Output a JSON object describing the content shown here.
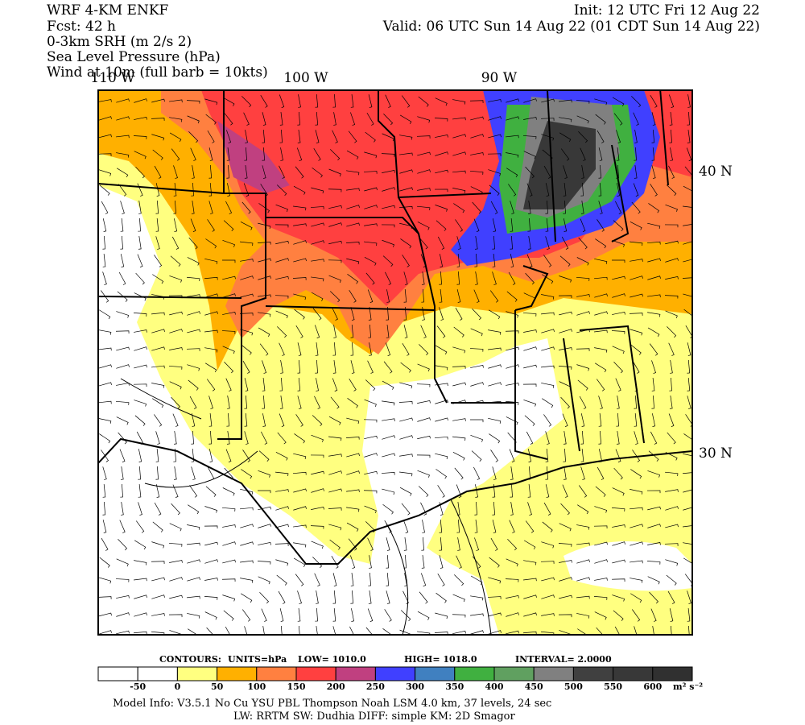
{
  "header": {
    "left": [
      "WRF 4-KM ENKF",
      "Fcst:   42 h",
      "0-3km SRH (m 2/s 2)",
      "Sea Level Pressure (hPa)",
      "Wind at 10m (full barb = 10kts)"
    ],
    "right": [
      "Init: 12 UTC Fri 12 Aug 22",
      "Valid: 06 UTC Sun 14 Aug 22 (01 CDT Sun 14 Aug 22)"
    ]
  },
  "map": {
    "longitude_labels": [
      "110 W",
      "100 W",
      "90 W"
    ],
    "latitude_labels": [
      "40 N",
      "30 N"
    ]
  },
  "contours": {
    "label": "CONTOURS:",
    "units": "UNITS=hPa",
    "low": "LOW=   1010.0",
    "high": "HIGH=   1018.0",
    "interval": "INTERVAL=    2.0000"
  },
  "colorbar": {
    "colors": [
      "#ffffff",
      "#ffffff",
      "#ffff80",
      "#ffb000",
      "#ff8040",
      "#ff4040",
      "#c04080",
      "#4040ff",
      "#4080c0",
      "#40b040",
      "#60a060",
      "#808080",
      "#404040",
      "#383838",
      "#303030"
    ],
    "labels": [
      "-50",
      "0",
      "50",
      "100",
      "150",
      "200",
      "250",
      "300",
      "350",
      "400",
      "450",
      "500",
      "550",
      "600"
    ],
    "units": "m² s⁻²"
  },
  "footer": [
    "Model Info: V3.5.1    No Cu    YSU PBL   Thompson        Noah LSM   4.0 km,   37 levels,    24 sec",
    "LW: RRTM  SW: Dudhia   DIFF: simple  KM: 2D Smagor"
  ]
}
